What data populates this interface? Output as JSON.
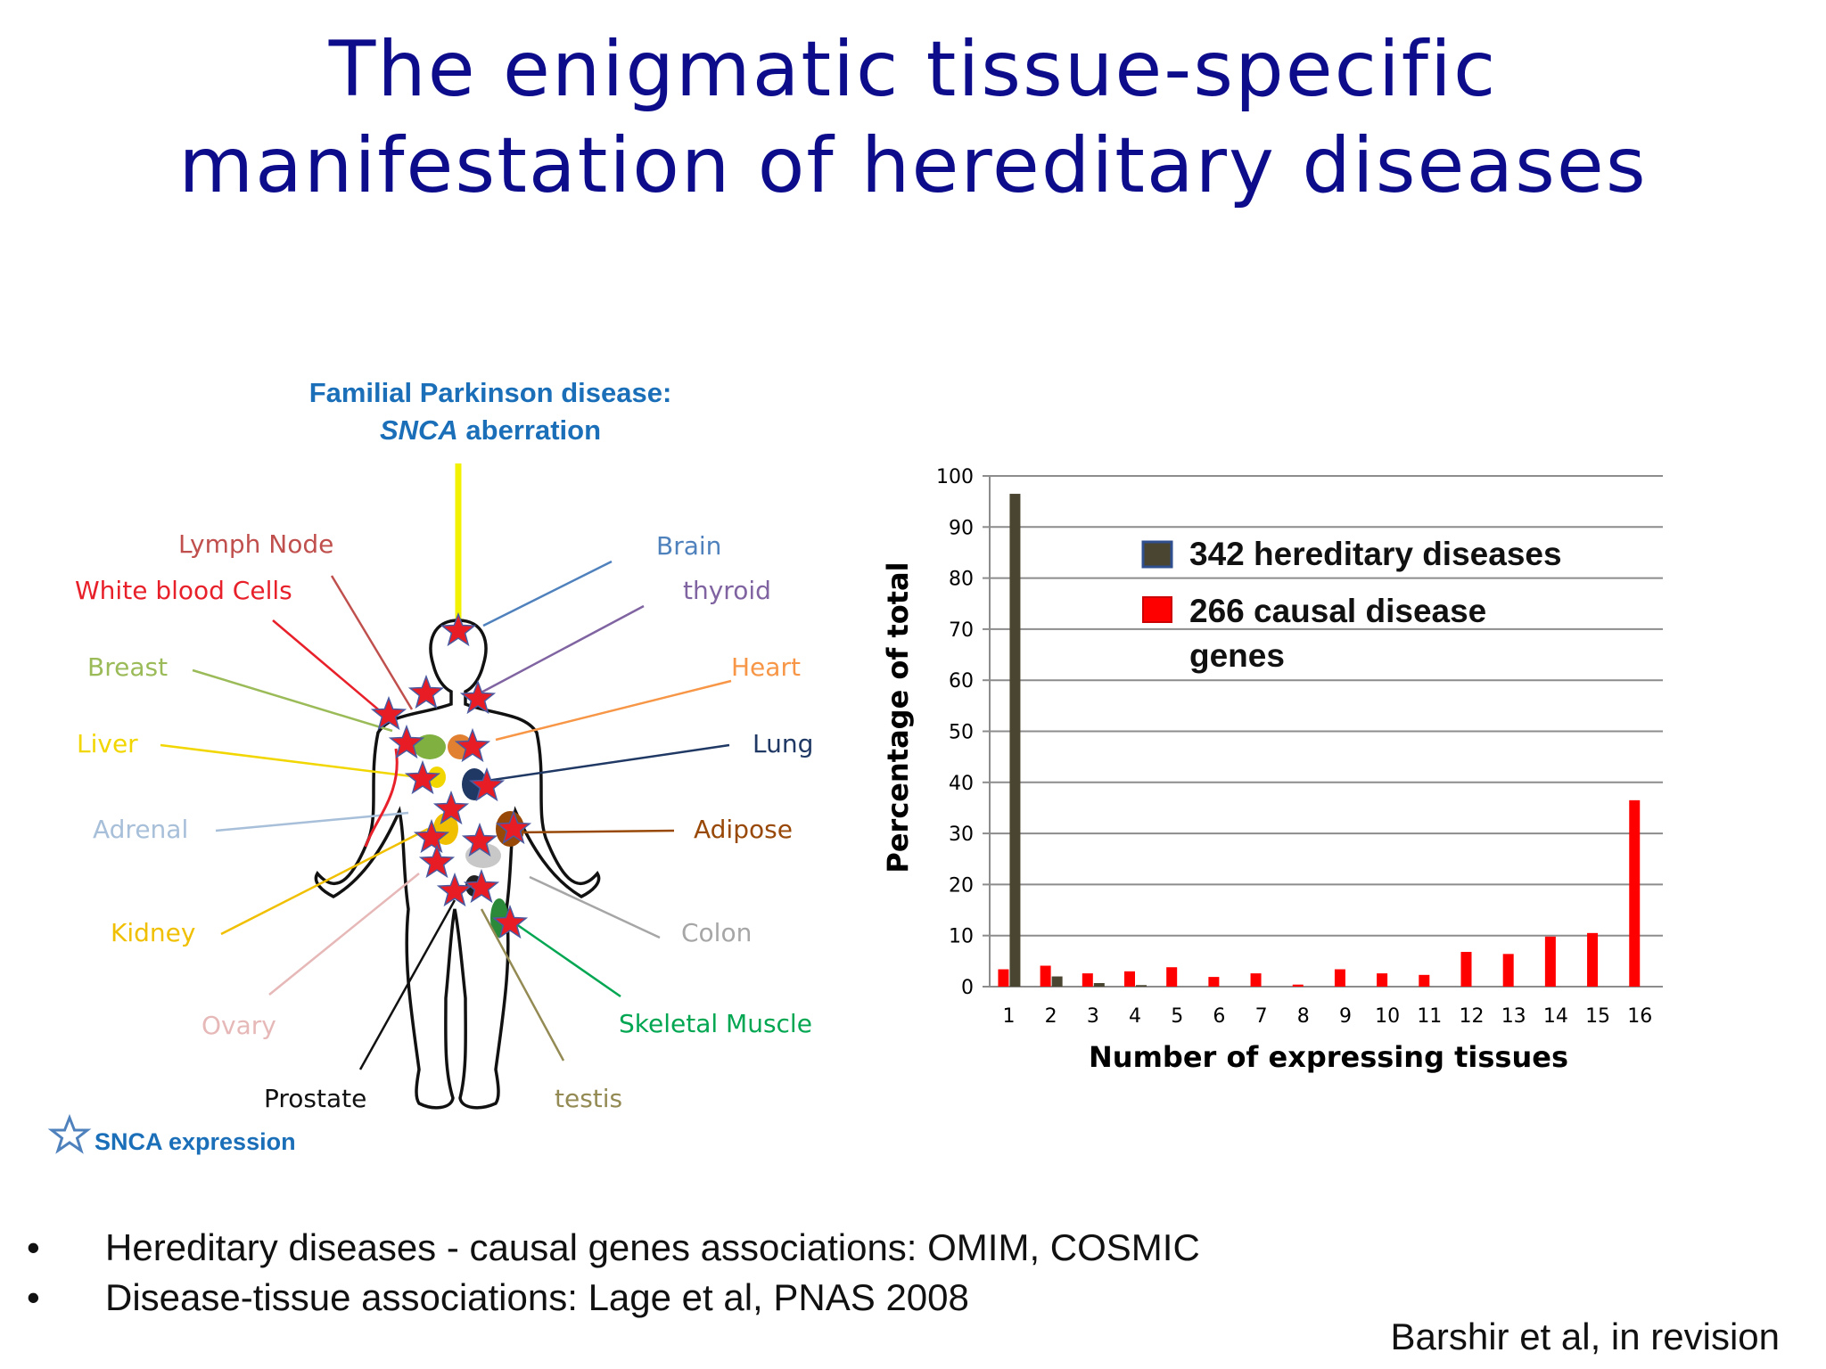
{
  "slide": {
    "title_line1": "The enigmatic tissue-specific",
    "title_line2": "manifestation of hereditary diseases"
  },
  "body_panel": {
    "caption_line1": "Familial Parkinson disease:",
    "caption_gene": "SNCA",
    "caption_rest": " aberration",
    "tissues": [
      {
        "label": "Lymph Node",
        "color": "#c0504d"
      },
      {
        "label": "White blood Cells",
        "color": "#e8202a"
      },
      {
        "label": "Breast",
        "color": "#9bbb59"
      },
      {
        "label": "Liver",
        "color": "#f2d600"
      },
      {
        "label": "Adrenal",
        "color": "#a7bfd9"
      },
      {
        "label": "Kidney",
        "color": "#f0c000"
      },
      {
        "label": "Ovary",
        "color": "#e6b8b7"
      },
      {
        "label": "Prostate",
        "color": "#111111"
      },
      {
        "label": "testis",
        "color": "#948a54"
      },
      {
        "label": "Skeletal Muscle",
        "color": "#00a651"
      },
      {
        "label": "Colon",
        "color": "#a6a6a6"
      },
      {
        "label": "Adipose",
        "color": "#984807"
      },
      {
        "label": "Lung",
        "color": "#1f3864"
      },
      {
        "label": "Heart",
        "color": "#f79646"
      },
      {
        "label": "thyroid",
        "color": "#8064a2"
      },
      {
        "label": "Brain",
        "color": "#4f81bd"
      }
    ],
    "legend_text": "SNCA expression",
    "legend_icon": "star-icon"
  },
  "chart_data": {
    "type": "bar",
    "categories": [
      "1",
      "2",
      "3",
      "4",
      "5",
      "6",
      "7",
      "8",
      "9",
      "10",
      "11",
      "12",
      "13",
      "14",
      "15",
      "16"
    ],
    "series": [
      {
        "name": "342 hereditary diseases",
        "color": "#4a4530",
        "values": [
          96.5,
          2.0,
          0.7,
          0.3,
          0,
          0,
          0,
          0,
          0,
          0,
          0,
          0,
          0,
          0,
          0,
          0
        ]
      },
      {
        "name": "266 causal disease genes",
        "color": "#ff0000",
        "values": [
          3.4,
          4.1,
          2.6,
          3.0,
          3.8,
          1.9,
          2.6,
          0.4,
          3.4,
          2.6,
          2.3,
          6.8,
          6.4,
          9.8,
          10.5,
          36.5
        ]
      }
    ],
    "legend_line1a": "342 hereditary diseases",
    "legend_line2a": "266 causal disease",
    "legend_line2b": "genes",
    "xlabel": "Number of expressing tissues",
    "ylabel": "Percentage of total",
    "ylim": [
      0,
      100
    ],
    "yticks": [
      "0",
      "10",
      "20",
      "30",
      "40",
      "50",
      "60",
      "70",
      "80",
      "90",
      "100"
    ],
    "grid": true,
    "legend_position": "top-right"
  },
  "bullets": [
    "Hereditary diseases - causal genes associations: OMIM, COSMIC",
    "Disease-tissue associations: Lage et al, PNAS 2008"
  ],
  "bullet_symbol": "•",
  "citation": "Barshir et al, in revision"
}
